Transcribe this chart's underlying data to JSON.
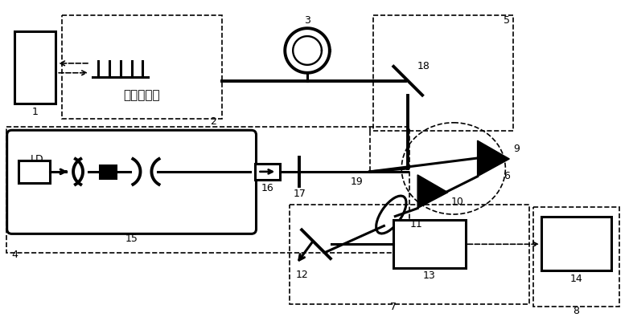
{
  "bg_color": "#ffffff",
  "fig_width": 7.82,
  "fig_height": 4.0,
  "dpi": 100,
  "lw_thin": 1.2,
  "lw_beam": 2.2,
  "lw_thick": 2.8
}
